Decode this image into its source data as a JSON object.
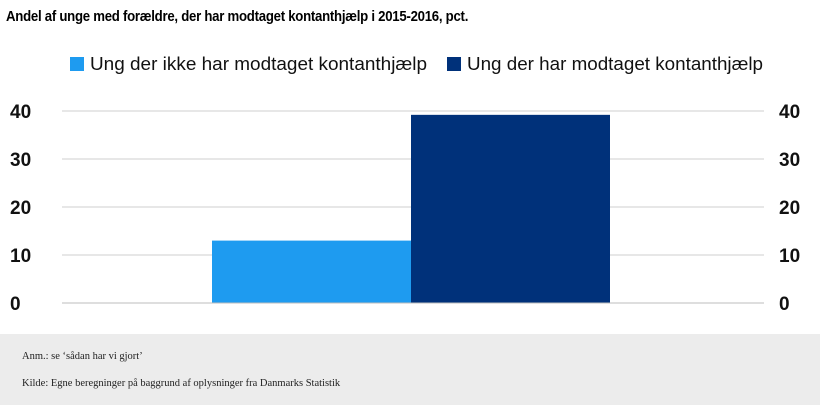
{
  "chart_data": {
    "type": "bar",
    "title": "Andel af unge med forældre, der har modtaget kontanthjælp i 2015-2016, pct.",
    "xlabel": "",
    "ylabel": "",
    "categories": [
      ""
    ],
    "series": [
      {
        "name": "Ung der ikke har modtaget kontanthjælp",
        "values": [
          13
        ],
        "color": "#1e9bf0"
      },
      {
        "name": "Ung der har modtaget kontanthjælp",
        "values": [
          39.2
        ],
        "color": "#00317a"
      }
    ],
    "ylim": [
      0,
      40
    ],
    "yticks": [
      "0",
      "10",
      "20",
      "30",
      "40"
    ],
    "grid": true,
    "legend": "top"
  },
  "footer": {
    "note": "Anm.: se ‘sådan har vi gjort’",
    "source": "Kilde: Egne beregninger på baggrund af oplysninger fra Danmarks Statistik"
  }
}
